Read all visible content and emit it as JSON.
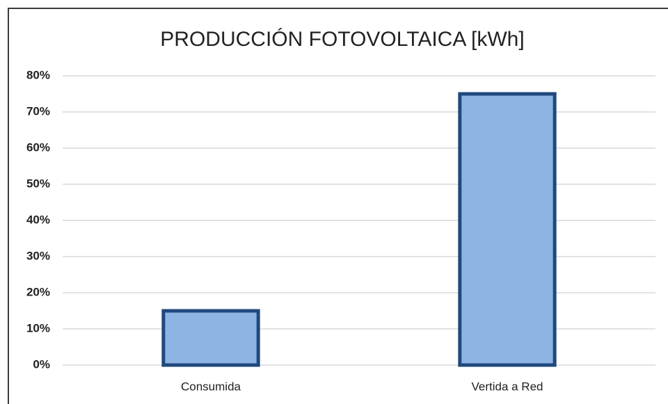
{
  "chart_data": {
    "type": "bar",
    "title": "PRODUCCIÓN FOTOVOLTAICA [kWh]",
    "categories": [
      "Consumida",
      "Vertida a Red"
    ],
    "values": [
      15,
      75
    ],
    "color": "#8eb4e3",
    "edge_color": "#1f497d",
    "ylim": [
      0,
      80
    ],
    "yticks": [
      {
        "value": 0,
        "label": "0%"
      },
      {
        "value": 10,
        "label": "10%"
      },
      {
        "value": 20,
        "label": "20%"
      },
      {
        "value": 30,
        "label": "30%"
      },
      {
        "value": 40,
        "label": "40%"
      },
      {
        "value": 50,
        "label": "50%"
      },
      {
        "value": 60,
        "label": "60%"
      },
      {
        "value": 70,
        "label": "70%"
      },
      {
        "value": 80,
        "label": "80%"
      }
    ],
    "grid": true
  }
}
